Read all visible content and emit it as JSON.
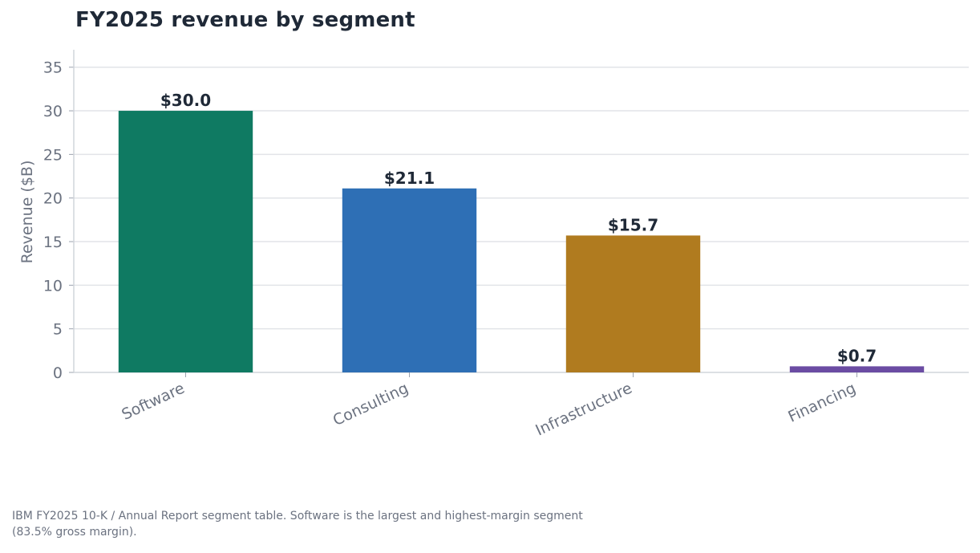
{
  "chart_data": {
    "type": "bar",
    "title": "FY2025 revenue by segment",
    "ylabel": "Revenue ($B)",
    "xlabel": "",
    "categories": [
      "Software",
      "Consulting",
      "Infrastructure",
      "Financing"
    ],
    "values": [
      30.0,
      21.1,
      15.7,
      0.7
    ],
    "data_labels": [
      "$30.0",
      "$21.1",
      "$15.7",
      "$0.7"
    ],
    "colors": [
      "#0f7a62",
      "#2e6fb5",
      "#b07b1f",
      "#6b4ca3"
    ],
    "ylim": [
      0,
      37
    ],
    "yticks": [
      0,
      5,
      10,
      15,
      20,
      25,
      30,
      35
    ],
    "grid": "horizontal",
    "legend": "none"
  },
  "note": "IBM FY2025 10-K / Annual Report segment table. Software is the largest and highest-margin segment (83.5% gross margin)."
}
